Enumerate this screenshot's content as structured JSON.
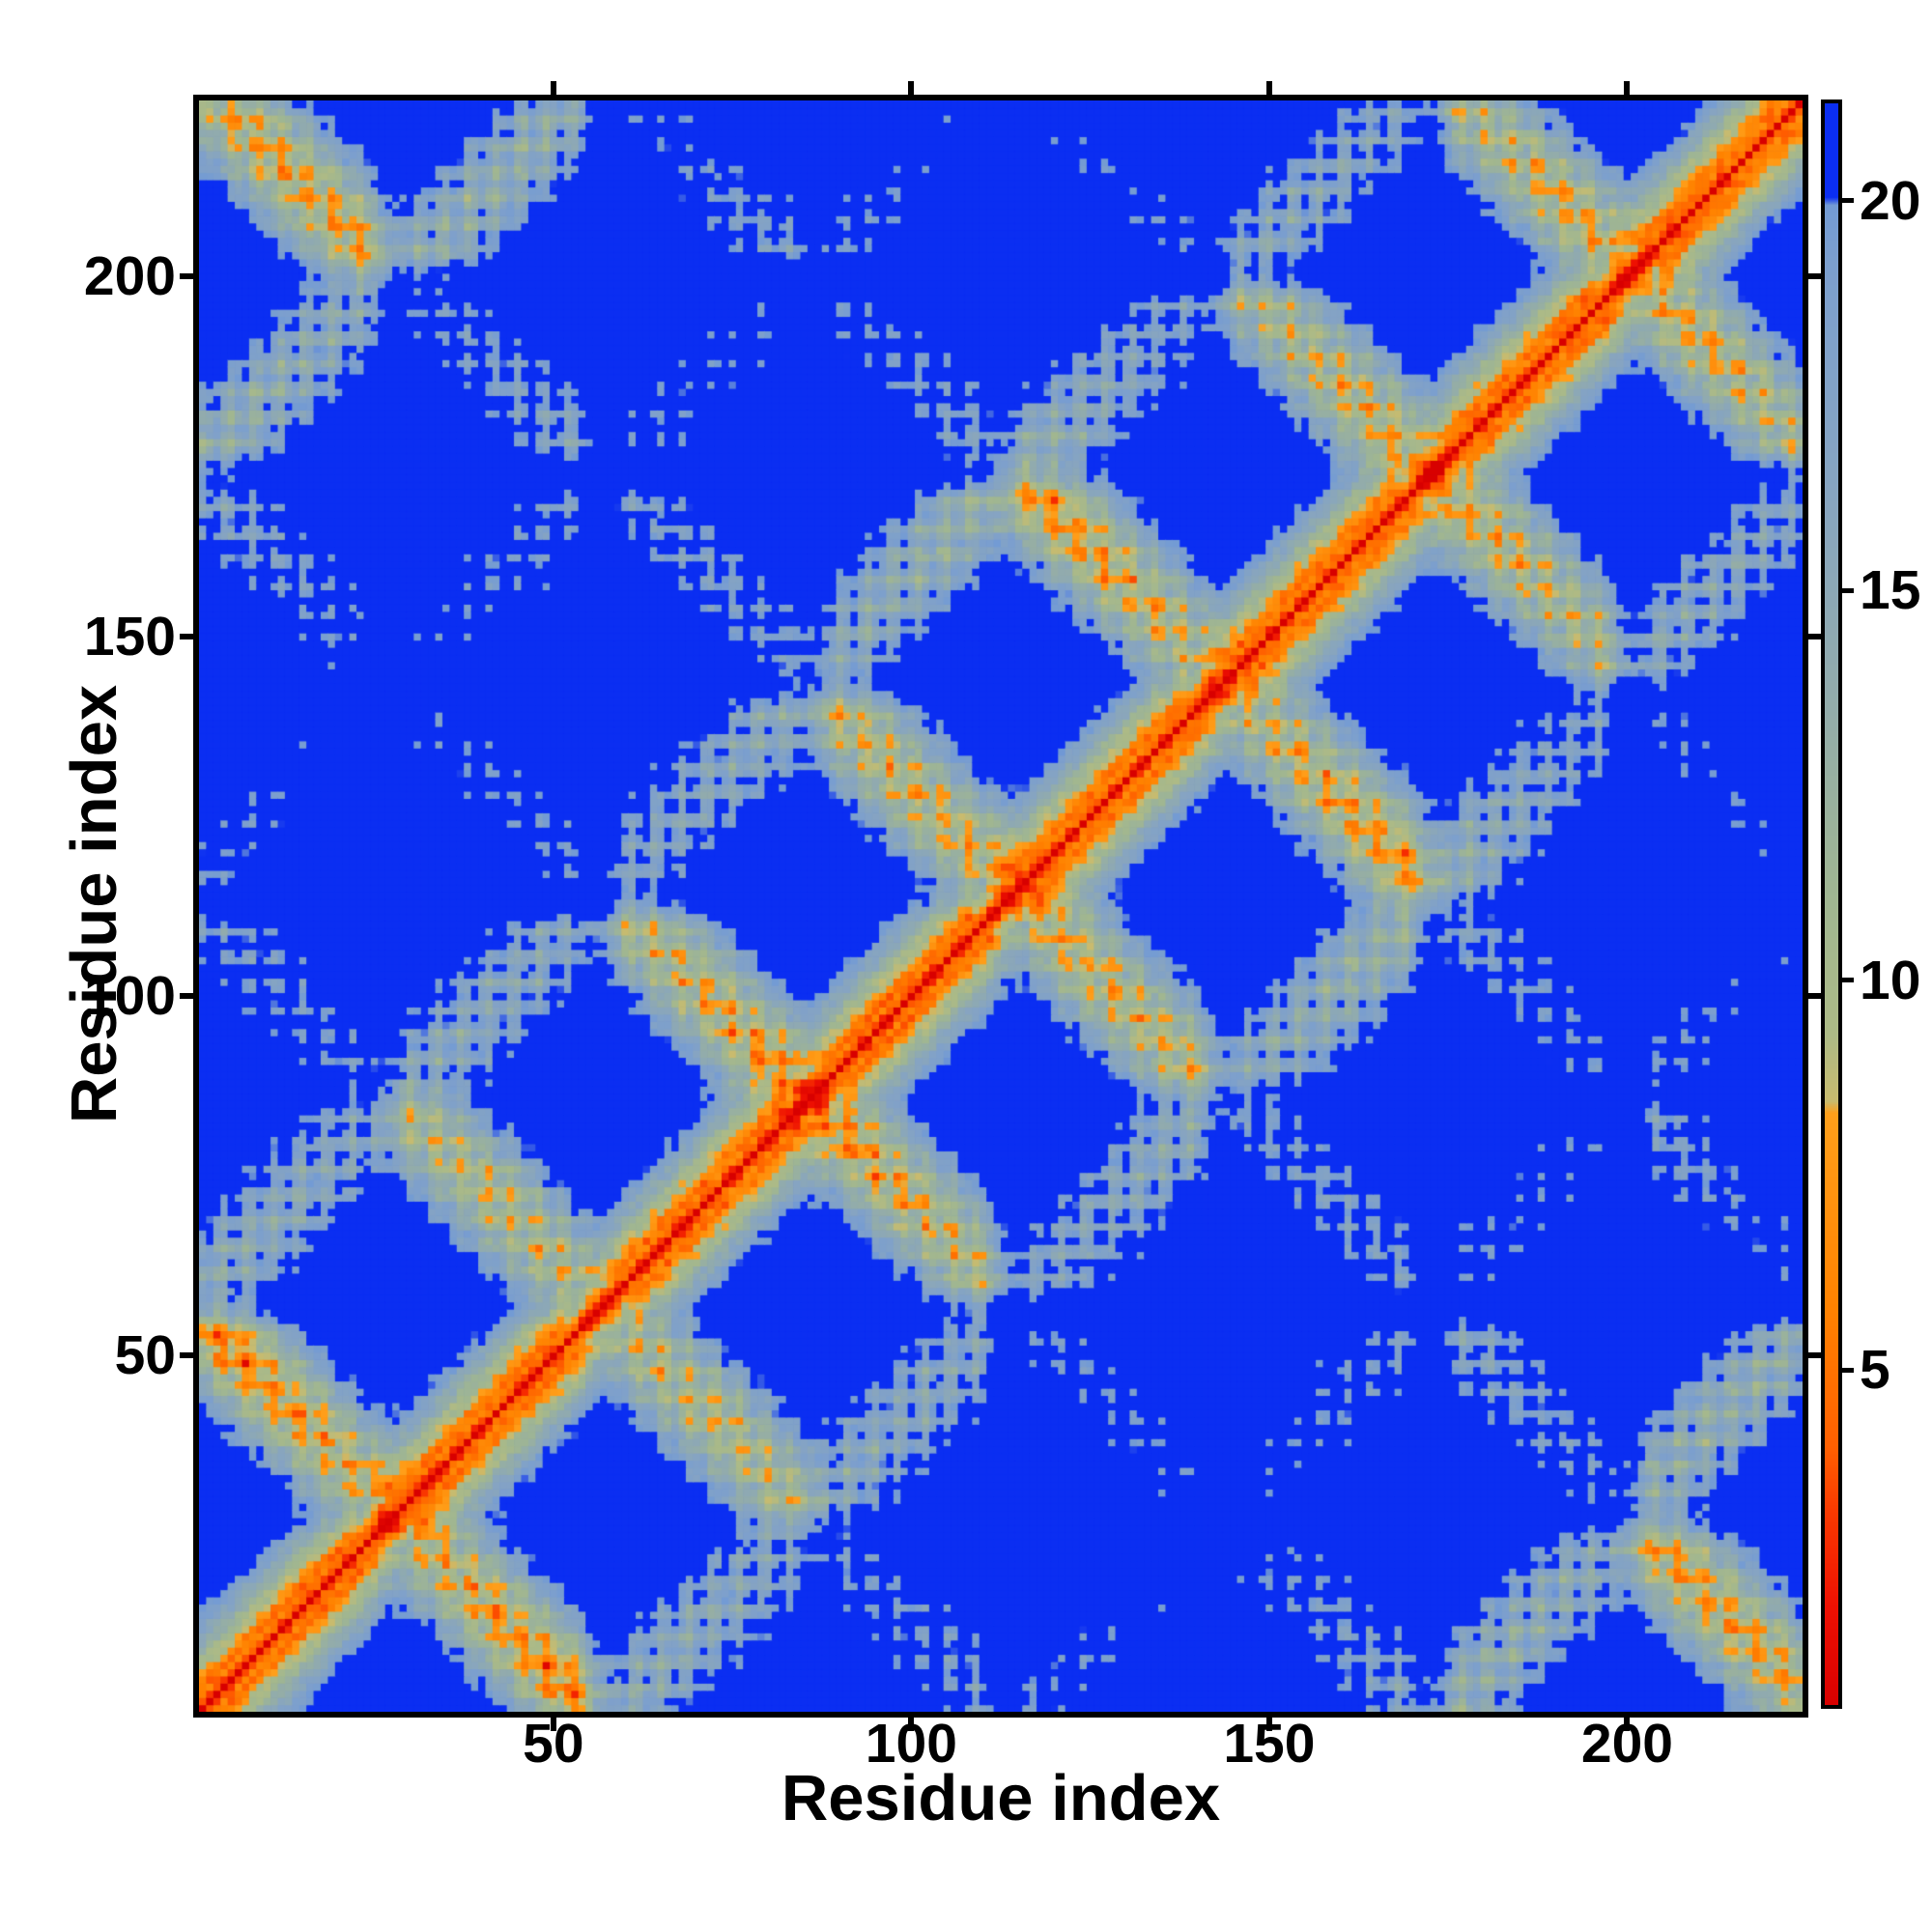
{
  "page": {
    "background": "#ffffff"
  },
  "chart_data": {
    "type": "heatmap",
    "title": "",
    "xlabel": "Residue index",
    "ylabel": "Residue index",
    "x_ticks": [
      50,
      100,
      150,
      200
    ],
    "y_ticks": [
      50,
      100,
      150,
      200
    ],
    "x_range": [
      1,
      224
    ],
    "y_range": [
      1,
      224
    ],
    "n_residues": 224,
    "grid": false,
    "legend_position": "none",
    "description": "Symmetric residue-residue distance matrix: red zero-distance diagonal, orange antiparallel X-shaped contact motifs crossing the diagonal, sage-green and steel-blue contact clouds with blue holes, and a uniform saturated-blue background where distances exceed the color clip.",
    "background_color": "#0b2ef2",
    "diagonal_color": "#e81200",
    "frame_color": "#000000",
    "colorbar": {
      "position": "right",
      "ticks": [
        20,
        15,
        10,
        5
      ],
      "value_min": 0.7,
      "value_max": 21.25,
      "clip_to_blue_above": 20.0
    },
    "colormap_stops": [
      [
        0.7,
        "#d80000"
      ],
      [
        1.95,
        "#ee1002"
      ],
      [
        3.2,
        "#fa3a00"
      ],
      [
        4.0,
        "#ff5f00"
      ],
      [
        5.8,
        "#ff8200"
      ],
      [
        8.3,
        "#ff9f1a"
      ],
      [
        8.45,
        "#c9bb6e"
      ],
      [
        9.3,
        "#adba86"
      ],
      [
        11.0,
        "#a0b691"
      ],
      [
        13.5,
        "#93acaa"
      ],
      [
        16.5,
        "#86a4c2"
      ],
      [
        19.2,
        "#7c9fce"
      ],
      [
        19.95,
        "#739bd4"
      ],
      [
        20.05,
        "#0b2ef2"
      ],
      [
        21.25,
        "#0b2ef2"
      ]
    ],
    "matrix_generator": {
      "model": "antiparallel-helix-bundle",
      "seed": 11,
      "units": 8,
      "bundle_radius": 11.3,
      "radius_jitter": 2.4,
      "angle_jitter": 0.3,
      "helix_residues_base": 22,
      "helix_residues_jitter": 5,
      "helix_rise": 1.5,
      "wobble_radius": 2.3,
      "wobble_step": 1.7453,
      "tilt": 0.22,
      "loop_residues": 4,
      "loop_bulge": 3.5,
      "tail_step": 3.2,
      "speckle_amplitude": 3.0
    }
  }
}
